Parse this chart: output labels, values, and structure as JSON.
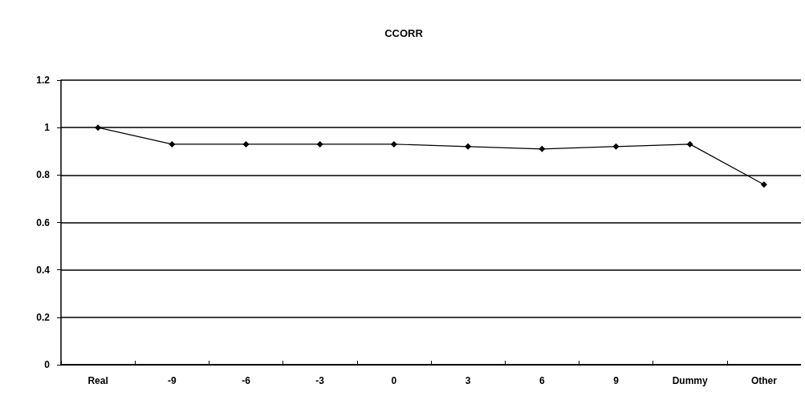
{
  "chart_data": {
    "type": "line",
    "title": "CCORR",
    "categories": [
      "Real",
      "-9",
      "-6",
      "-3",
      "0",
      "3",
      "6",
      "9",
      "Dummy",
      "Other"
    ],
    "series": [
      {
        "color": "#000000",
        "values": [
          1.0,
          0.93,
          0.93,
          0.93,
          0.93,
          0.92,
          0.91,
          0.92,
          0.93,
          0.76
        ]
      }
    ],
    "ylim": [
      0,
      1.2
    ],
    "yticks": [
      0,
      0.2,
      0.4,
      0.6,
      0.8,
      1,
      1.2
    ],
    "grid": "y",
    "marker": "diamond",
    "line_style": "solid"
  }
}
